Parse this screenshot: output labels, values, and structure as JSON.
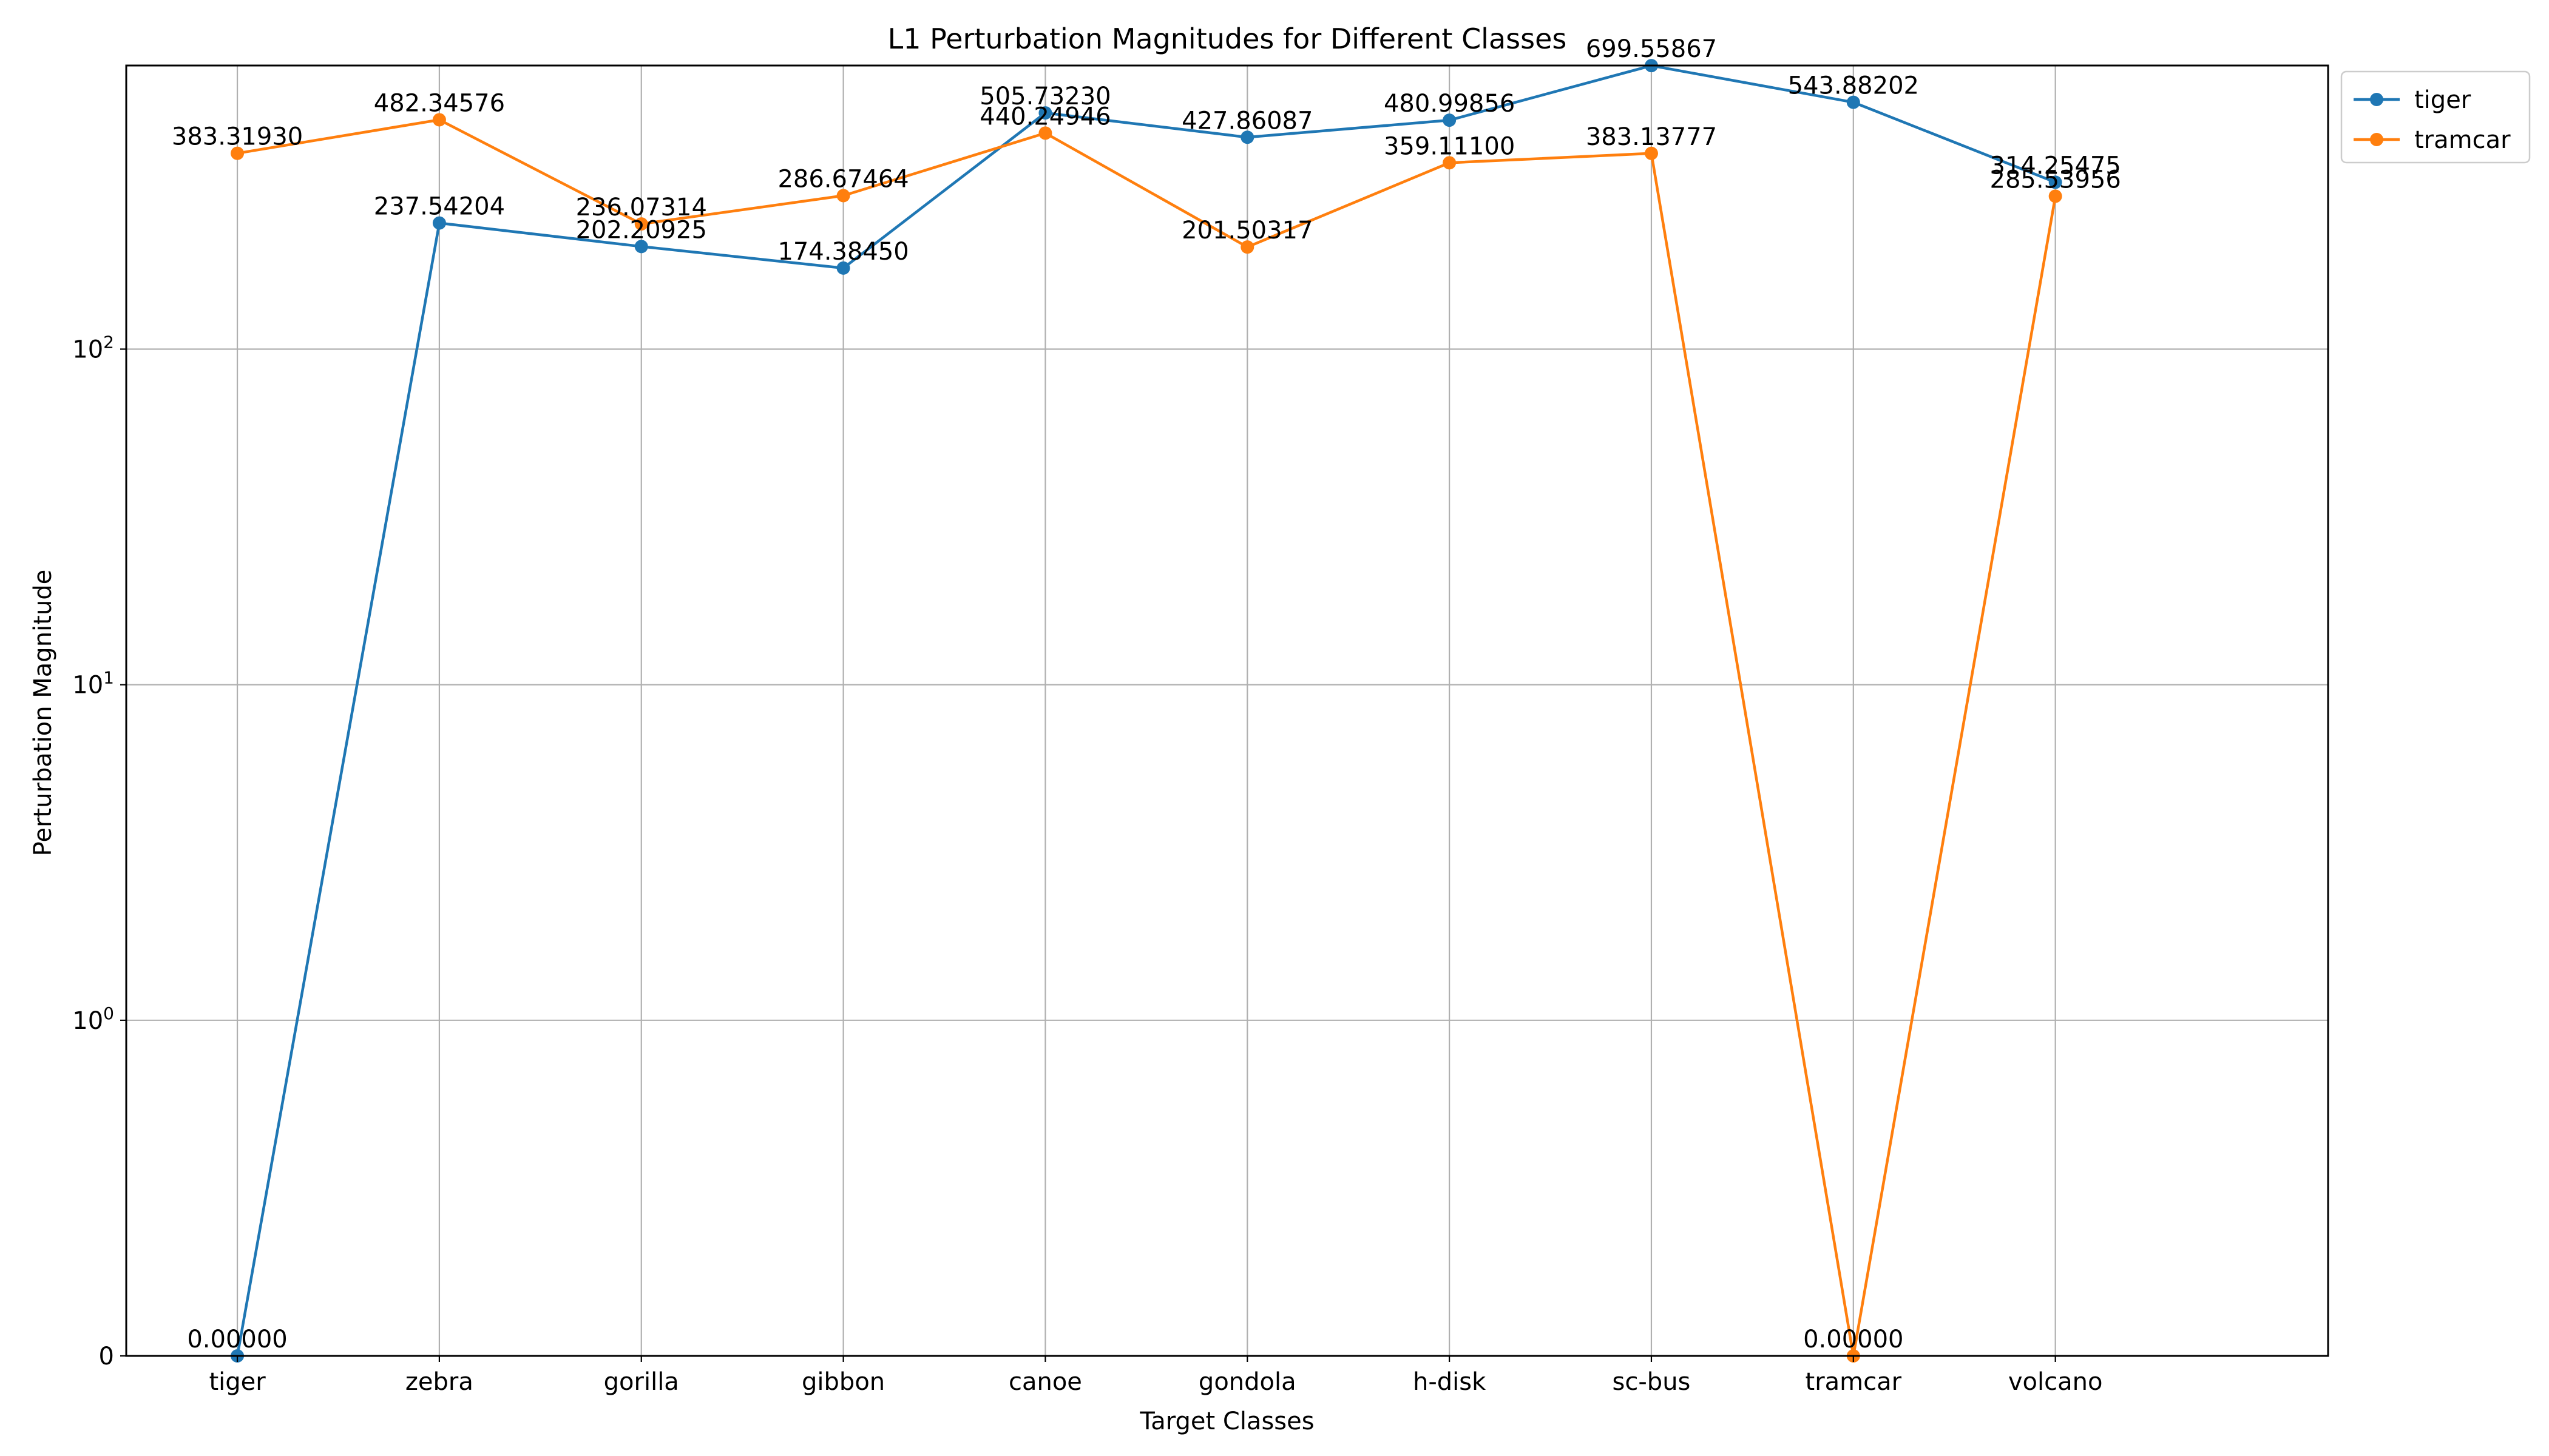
{
  "chart_data": {
    "type": "line",
    "title": "L1 Perturbation Magnitudes for Different Classes",
    "xlabel": "Target Classes",
    "ylabel": "Perturbation Magnitude",
    "yscale": "symlog",
    "linthresh": 1,
    "ylim": [
      0,
      700
    ],
    "grid": true,
    "legend": "upper-left-outside",
    "categories": [
      "tiger",
      "zebra",
      "gorilla",
      "gibbon",
      "canoe",
      "gondola",
      "h-disk",
      "sc-bus",
      "tramcar",
      "volcano"
    ],
    "y_ticks": [
      {
        "value": 0,
        "label": "0"
      },
      {
        "value": 1,
        "label": "10",
        "exp": "0"
      },
      {
        "value": 10,
        "label": "10",
        "exp": "1"
      },
      {
        "value": 100,
        "label": "10",
        "exp": "2"
      }
    ],
    "series": [
      {
        "name": "tiger",
        "color": "#1f77b4",
        "values": [
          0.0,
          237.54204,
          202.20925,
          174.3845,
          505.7323,
          427.86087,
          480.99856,
          699.55867,
          543.88202,
          314.25475
        ],
        "labels": [
          "0.00000",
          "237.54204",
          "202.20925",
          "174.38450",
          "505.73230",
          "427.86087",
          "480.99856",
          "699.55867",
          "543.88202",
          "314.25475"
        ]
      },
      {
        "name": "tramcar",
        "color": "#ff7f0e",
        "values": [
          383.3193,
          482.34576,
          236.07314,
          286.67464,
          440.24946,
          201.50317,
          359.111,
          383.13777,
          0.0,
          285.53956
        ],
        "labels": [
          "383.31930",
          "482.34576",
          "236.07314",
          "286.67464",
          "440.24946",
          "201.50317",
          "359.11100",
          "383.13777",
          "0.00000",
          "285.53956"
        ]
      }
    ]
  }
}
